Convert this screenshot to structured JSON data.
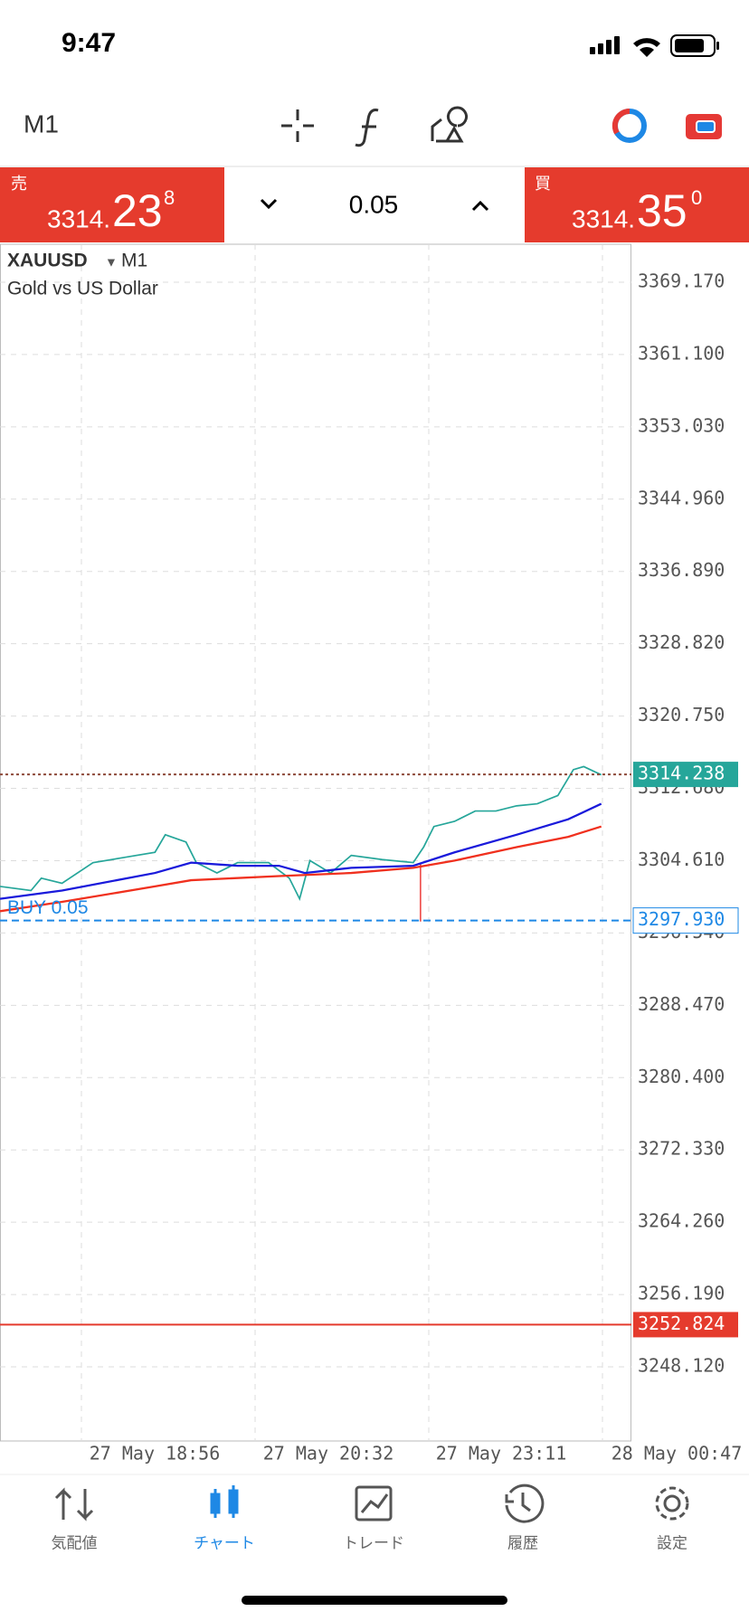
{
  "status": {
    "time": "9:47"
  },
  "toolbar": {
    "timeframe": "M1"
  },
  "sell": {
    "label": "売",
    "price_main": "3314.",
    "price_big": "23",
    "price_small": "8"
  },
  "lot": "0.05",
  "buy": {
    "label": "買",
    "price_main": "3314.",
    "price_big": "35",
    "price_small": "0"
  },
  "chart": {
    "symbol": "XAUUSD",
    "timeframe": "M1",
    "description": "Gold vs US Dollar",
    "price_ticks": [
      {
        "value": 3369.17,
        "label": "3369.170"
      },
      {
        "value": 3361.1,
        "label": "3361.100"
      },
      {
        "value": 3353.03,
        "label": "3353.030"
      },
      {
        "value": 3344.96,
        "label": "3344.960"
      },
      {
        "value": 3336.89,
        "label": "3336.890"
      },
      {
        "value": 3328.82,
        "label": "3328.820"
      },
      {
        "value": 3320.75,
        "label": "3320.750"
      },
      {
        "value": 3312.68,
        "label": "3312.680"
      },
      {
        "value": 3304.61,
        "label": "3304.610"
      },
      {
        "value": 3296.54,
        "label": "3296.540"
      },
      {
        "value": 3288.47,
        "label": "3288.470"
      },
      {
        "value": 3280.4,
        "label": "3280.400"
      },
      {
        "value": 3272.33,
        "label": "3272.330"
      },
      {
        "value": 3264.26,
        "label": "3264.260"
      },
      {
        "value": 3256.19,
        "label": "3256.190"
      },
      {
        "value": 3248.12,
        "label": "3248.120"
      }
    ],
    "time_labels": [
      "27 May 18:56",
      "27 May 20:32",
      "27 May 23:11",
      "28 May 00:47"
    ],
    "current_price": 3314.238,
    "order": {
      "label": "BUY 0.05",
      "price": {
        "value": 3297.93,
        "label": "3297.930"
      }
    },
    "level_price": 3252.824
  },
  "nav": [
    "気配値",
    "チャート",
    "トレード",
    "履歴",
    "設定"
  ]
}
